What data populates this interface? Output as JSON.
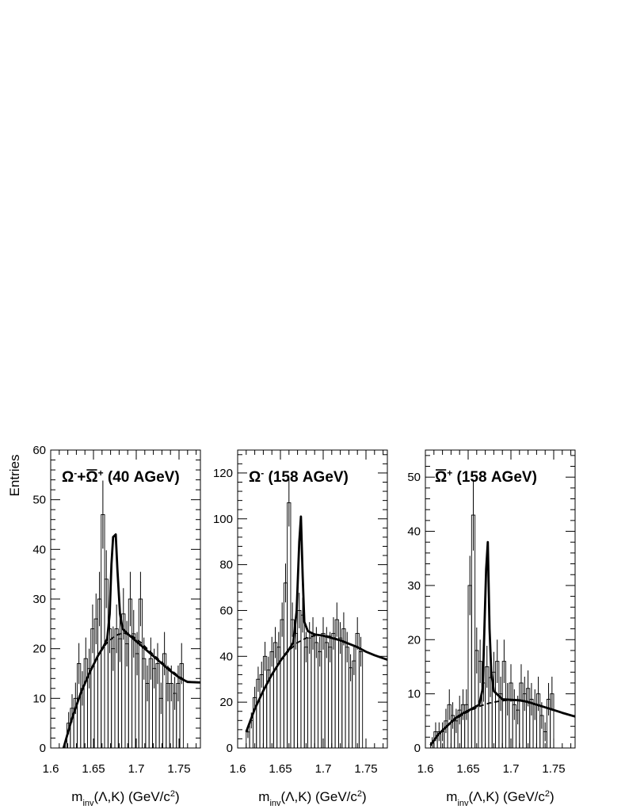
{
  "ylabel": "Entries",
  "chart_data": [
    {
      "type": "histogram",
      "label_parts": [
        "Ω",
        "-",
        "+",
        "Ω",
        "+",
        " (40 AGeV)"
      ],
      "xlabel_parts": [
        "m",
        "inv",
        "(Λ,K) (GeV/c",
        "2",
        ")"
      ],
      "xlim": [
        1.6,
        1.775
      ],
      "ylim": [
        0,
        60
      ],
      "xticks": [
        1.6,
        1.65,
        1.7,
        1.75
      ],
      "xtick_labels": [
        "1.6",
        "1.65",
        "1.7",
        "1.75"
      ],
      "yticks": [
        0,
        10,
        20,
        30,
        40,
        50,
        60
      ],
      "ytick_labels": [
        "0",
        "10",
        "20",
        "30",
        "40",
        "50",
        "60"
      ],
      "bin_start": 1.615,
      "bin_width": 0.004,
      "counts": [
        0,
        5,
        8,
        10,
        17,
        12,
        18,
        16,
        24,
        26,
        30,
        47,
        34,
        24,
        20,
        24,
        22,
        27,
        21,
        30,
        23,
        19,
        30,
        18,
        13,
        18,
        16,
        17,
        10,
        19,
        13,
        13,
        11,
        13,
        17
      ],
      "fit_total": [
        [
          1.615,
          0
        ],
        [
          1.625,
          6
        ],
        [
          1.635,
          11
        ],
        [
          1.645,
          15
        ],
        [
          1.655,
          18.5
        ],
        [
          1.662,
          20.5
        ],
        [
          1.666,
          22
        ],
        [
          1.669,
          27
        ],
        [
          1.671,
          37
        ],
        [
          1.673,
          42.5
        ],
        [
          1.676,
          43
        ],
        [
          1.678,
          36
        ],
        [
          1.681,
          27
        ],
        [
          1.684,
          24
        ],
        [
          1.69,
          23
        ],
        [
          1.7,
          21.5
        ],
        [
          1.71,
          20
        ],
        [
          1.72,
          18.5
        ],
        [
          1.73,
          17
        ],
        [
          1.74,
          15.5
        ],
        [
          1.75,
          14.2
        ],
        [
          1.76,
          13.3
        ],
        [
          1.775,
          13.2
        ]
      ],
      "fit_background": [
        [
          1.615,
          0
        ],
        [
          1.625,
          6
        ],
        [
          1.635,
          11
        ],
        [
          1.645,
          15
        ],
        [
          1.655,
          18.5
        ],
        [
          1.665,
          21
        ],
        [
          1.675,
          22.6
        ],
        [
          1.685,
          23.2
        ],
        [
          1.695,
          22.6
        ],
        [
          1.705,
          21.3
        ],
        [
          1.72,
          18.8
        ],
        [
          1.735,
          16.5
        ],
        [
          1.75,
          14.4
        ],
        [
          1.76,
          13.4
        ],
        [
          1.775,
          13.2
        ]
      ]
    },
    {
      "type": "histogram",
      "label_parts": [
        "Ω",
        "-",
        " (158 AGeV)"
      ],
      "xlabel_parts": [
        "m",
        "inv",
        "(Λ,K) (GeV/c",
        "2",
        ")"
      ],
      "xlim": [
        1.6,
        1.775
      ],
      "ylim": [
        0,
        130
      ],
      "xticks": [
        1.6,
        1.65,
        1.7,
        1.75
      ],
      "xtick_labels": [
        "1.6",
        "1.65",
        "1.7",
        "1.75"
      ],
      "yticks": [
        0,
        20,
        40,
        60,
        80,
        100,
        120
      ],
      "ytick_labels": [
        "0",
        "20",
        "40",
        "60",
        "80",
        "100",
        "120"
      ],
      "bin_start": 1.61,
      "bin_width": 0.004,
      "counts": [
        7,
        12,
        22,
        30,
        32,
        40,
        34,
        42,
        46,
        44,
        56,
        72,
        107,
        56,
        50,
        60,
        58,
        44,
        48,
        50,
        46,
        42,
        50,
        46,
        44,
        50,
        56,
        48,
        52,
        44,
        35,
        38,
        50,
        42
      ],
      "fit_total": [
        [
          1.61,
          7
        ],
        [
          1.62,
          17
        ],
        [
          1.63,
          25
        ],
        [
          1.64,
          32
        ],
        [
          1.65,
          38
        ],
        [
          1.66,
          43
        ],
        [
          1.665,
          46
        ],
        [
          1.669,
          60
        ],
        [
          1.672,
          90
        ],
        [
          1.674,
          101
        ],
        [
          1.676,
          75
        ],
        [
          1.678,
          55
        ],
        [
          1.682,
          51
        ],
        [
          1.69,
          49.5
        ],
        [
          1.7,
          49
        ],
        [
          1.71,
          48
        ],
        [
          1.72,
          47
        ],
        [
          1.73,
          45.5
        ],
        [
          1.74,
          44
        ],
        [
          1.75,
          42
        ],
        [
          1.76,
          40.5
        ],
        [
          1.775,
          38.5
        ]
      ],
      "fit_background": [
        [
          1.61,
          7
        ],
        [
          1.62,
          17
        ],
        [
          1.63,
          25
        ],
        [
          1.64,
          32
        ],
        [
          1.65,
          38
        ],
        [
          1.66,
          42.5
        ],
        [
          1.67,
          46
        ],
        [
          1.68,
          48
        ],
        [
          1.69,
          49
        ],
        [
          1.7,
          49.2
        ],
        [
          1.71,
          48.5
        ],
        [
          1.72,
          47
        ],
        [
          1.73,
          45.5
        ],
        [
          1.74,
          44
        ],
        [
          1.75,
          42
        ],
        [
          1.76,
          40.5
        ],
        [
          1.775,
          38.5
        ]
      ]
    },
    {
      "type": "histogram",
      "label_parts": [
        "Ω",
        "+",
        " (158 AGeV)"
      ],
      "xlabel_parts": [
        "m",
        "inv",
        "(Λ,K) (GeV/c",
        "2",
        ")"
      ],
      "xlim": [
        1.6,
        1.775
      ],
      "ylim": [
        0,
        55
      ],
      "xticks": [
        1.6,
        1.65,
        1.7,
        1.75
      ],
      "xtick_labels": [
        "1.6",
        "1.65",
        "1.7",
        "1.75"
      ],
      "yticks": [
        0,
        10,
        20,
        30,
        40,
        50
      ],
      "ytick_labels": [
        "0",
        "10",
        "20",
        "30",
        "40",
        "50"
      ],
      "bin_start": 1.606,
      "bin_width": 0.004,
      "counts": [
        1,
        3,
        3,
        3,
        5,
        8,
        6,
        5,
        7,
        8,
        8,
        30,
        43,
        18,
        16,
        12,
        15,
        13,
        14,
        16,
        10,
        16,
        9,
        12,
        8,
        7,
        12,
        10,
        11,
        9,
        8,
        10,
        6,
        3,
        9,
        10
      ],
      "fit_total": [
        [
          1.606,
          0.5
        ],
        [
          1.615,
          2.5
        ],
        [
          1.625,
          4
        ],
        [
          1.635,
          5.5
        ],
        [
          1.645,
          6.5
        ],
        [
          1.655,
          7.3
        ],
        [
          1.663,
          8
        ],
        [
          1.667,
          11
        ],
        [
          1.669,
          22
        ],
        [
          1.671,
          33
        ],
        [
          1.673,
          38
        ],
        [
          1.675,
          22
        ],
        [
          1.677,
          14
        ],
        [
          1.68,
          10.5
        ],
        [
          1.69,
          9
        ],
        [
          1.7,
          8.9
        ],
        [
          1.71,
          8.8
        ],
        [
          1.72,
          8.5
        ],
        [
          1.73,
          8
        ],
        [
          1.74,
          7.5
        ],
        [
          1.75,
          7
        ],
        [
          1.76,
          6.5
        ],
        [
          1.775,
          5.8
        ]
      ],
      "fit_background": [
        [
          1.606,
          0.5
        ],
        [
          1.615,
          2.5
        ],
        [
          1.625,
          4
        ],
        [
          1.635,
          5.3
        ],
        [
          1.645,
          6.3
        ],
        [
          1.655,
          7.1
        ],
        [
          1.665,
          7.8
        ],
        [
          1.675,
          8.3
        ],
        [
          1.685,
          8.6
        ],
        [
          1.695,
          8.8
        ],
        [
          1.705,
          8.8
        ],
        [
          1.715,
          8.6
        ],
        [
          1.725,
          8.2
        ],
        [
          1.735,
          7.8
        ],
        [
          1.745,
          7.3
        ],
        [
          1.755,
          6.8
        ],
        [
          1.765,
          6.3
        ],
        [
          1.775,
          5.8
        ]
      ]
    }
  ]
}
